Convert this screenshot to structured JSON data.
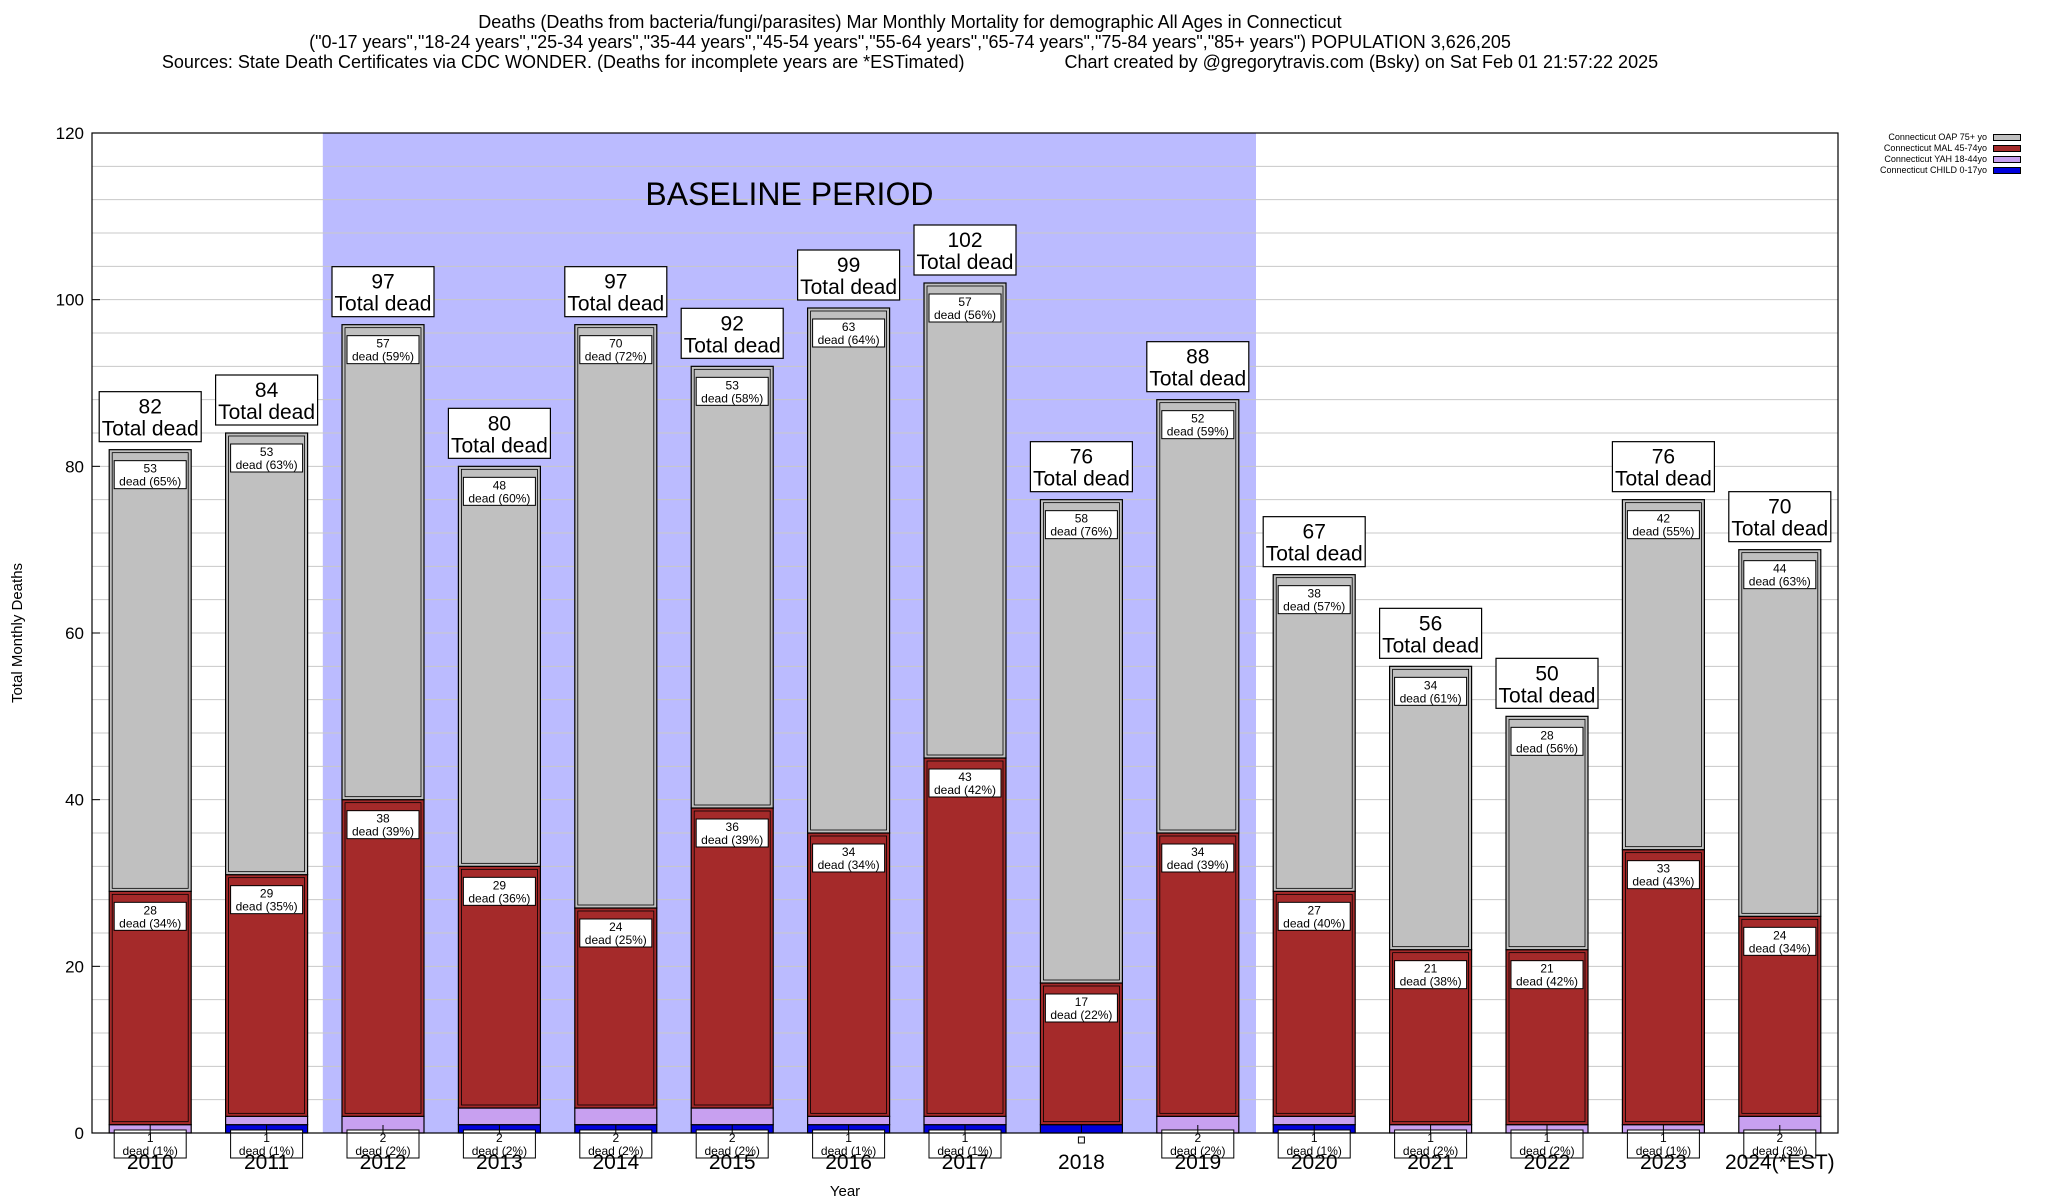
{
  "title": {
    "line1": "Deaths (Deaths from bacteria/fungi/parasites) Mar Monthly Mortality for demographic All Ages in Connecticut",
    "line2": "(\"0-17 years\",\"18-24 years\",\"25-34 years\",\"35-44 years\",\"45-54 years\",\"55-64 years\",\"65-74 years\",\"75-84 years\",\"85+ years\") POPULATION 3,626,205",
    "sources": "Sources: State Death Certificates via CDC WONDER. (Deaths for incomplete years are *ESTimated)",
    "credit": "Chart created by @gregorytravis.com (Bsky) on Sat Feb 01 21:57:22 2025"
  },
  "chart_data": {
    "type": "bar",
    "stacked": true,
    "xlabel": "Year",
    "ylabel": "Total Monthly Deaths",
    "ylim": [
      0,
      120
    ],
    "yticks": [
      0,
      20,
      40,
      60,
      80,
      100,
      120
    ],
    "grid": true,
    "legend_position": "top-right",
    "categories": [
      "2010",
      "2011",
      "2012",
      "2013",
      "2014",
      "2015",
      "2016",
      "2017",
      "2018",
      "2019",
      "2020",
      "2021",
      "2022",
      "2023",
      "2024(*EST)"
    ],
    "baseline": {
      "label": "BASELINE PERIOD",
      "start": "2012",
      "end": "2019",
      "color": "#bbbbff"
    },
    "series": [
      {
        "name": "Connecticut CHILD 0-17yo",
        "color": "#0000dd",
        "values": [
          0,
          1,
          0,
          1,
          1,
          1,
          1,
          1,
          1,
          0,
          1,
          0,
          0,
          0,
          0
        ]
      },
      {
        "name": "Connecticut YAH 18-44yo",
        "color": "#c8a0f0",
        "values": [
          1,
          1,
          2,
          2,
          2,
          2,
          1,
          1,
          0,
          2,
          1,
          1,
          1,
          1,
          2
        ]
      },
      {
        "name": "Connecticut MAL 45-74yo",
        "color": "#a52a2a",
        "values": [
          28,
          29,
          38,
          29,
          24,
          36,
          34,
          43,
          17,
          34,
          27,
          21,
          21,
          33,
          24
        ]
      },
      {
        "name": "Connecticut OAP 75+ yo",
        "color": "#c0c0c0",
        "values": [
          53,
          53,
          57,
          48,
          70,
          53,
          63,
          57,
          58,
          52,
          38,
          34,
          28,
          42,
          44
        ]
      }
    ],
    "totals": [
      82,
      84,
      97,
      80,
      97,
      92,
      99,
      102,
      76,
      88,
      67,
      56,
      50,
      76,
      70
    ],
    "total_label": "Total dead",
    "segment_labels": {
      "oap": [
        "53\ndead (65%)",
        "53\ndead (63%)",
        "57\ndead (59%)",
        "48\ndead (60%)",
        "70\ndead (72%)",
        "53\ndead (58%)",
        "63\ndead (64%)",
        "57\ndead (56%)",
        "58\ndead (76%)",
        "52\ndead (59%)",
        "38\ndead (57%)",
        "34\ndead (61%)",
        "28\ndead (56%)",
        "42\ndead (55%)",
        "44\ndead (63%)"
      ],
      "mal": [
        "28\ndead (34%)",
        "29\ndead (35%)",
        "38\ndead (39%)",
        "29\ndead (36%)",
        "24\ndead (25%)",
        "36\ndead (39%)",
        "34\ndead (34%)",
        "43\ndead (42%)",
        "17\ndead (22%)",
        "34\ndead (39%)",
        "27\ndead (40%)",
        "21\ndead (38%)",
        "21\ndead (42%)",
        "33\ndead (43%)",
        "24\ndead (34%)"
      ],
      "yah": [
        "1\ndead (1%)",
        "1\ndead (1%)",
        "2\ndead (2%)",
        "2\ndead (2%)",
        "2\ndead (2%)",
        "2\ndead (2%)",
        "1\ndead (1%)",
        "1\ndead (1%)",
        "",
        "2\ndead (2%)",
        "1\ndead (1%)",
        "1\ndead (2%)",
        "1\ndead (2%)",
        "1\ndead (1%)",
        "2\ndead (3%)"
      ]
    }
  }
}
